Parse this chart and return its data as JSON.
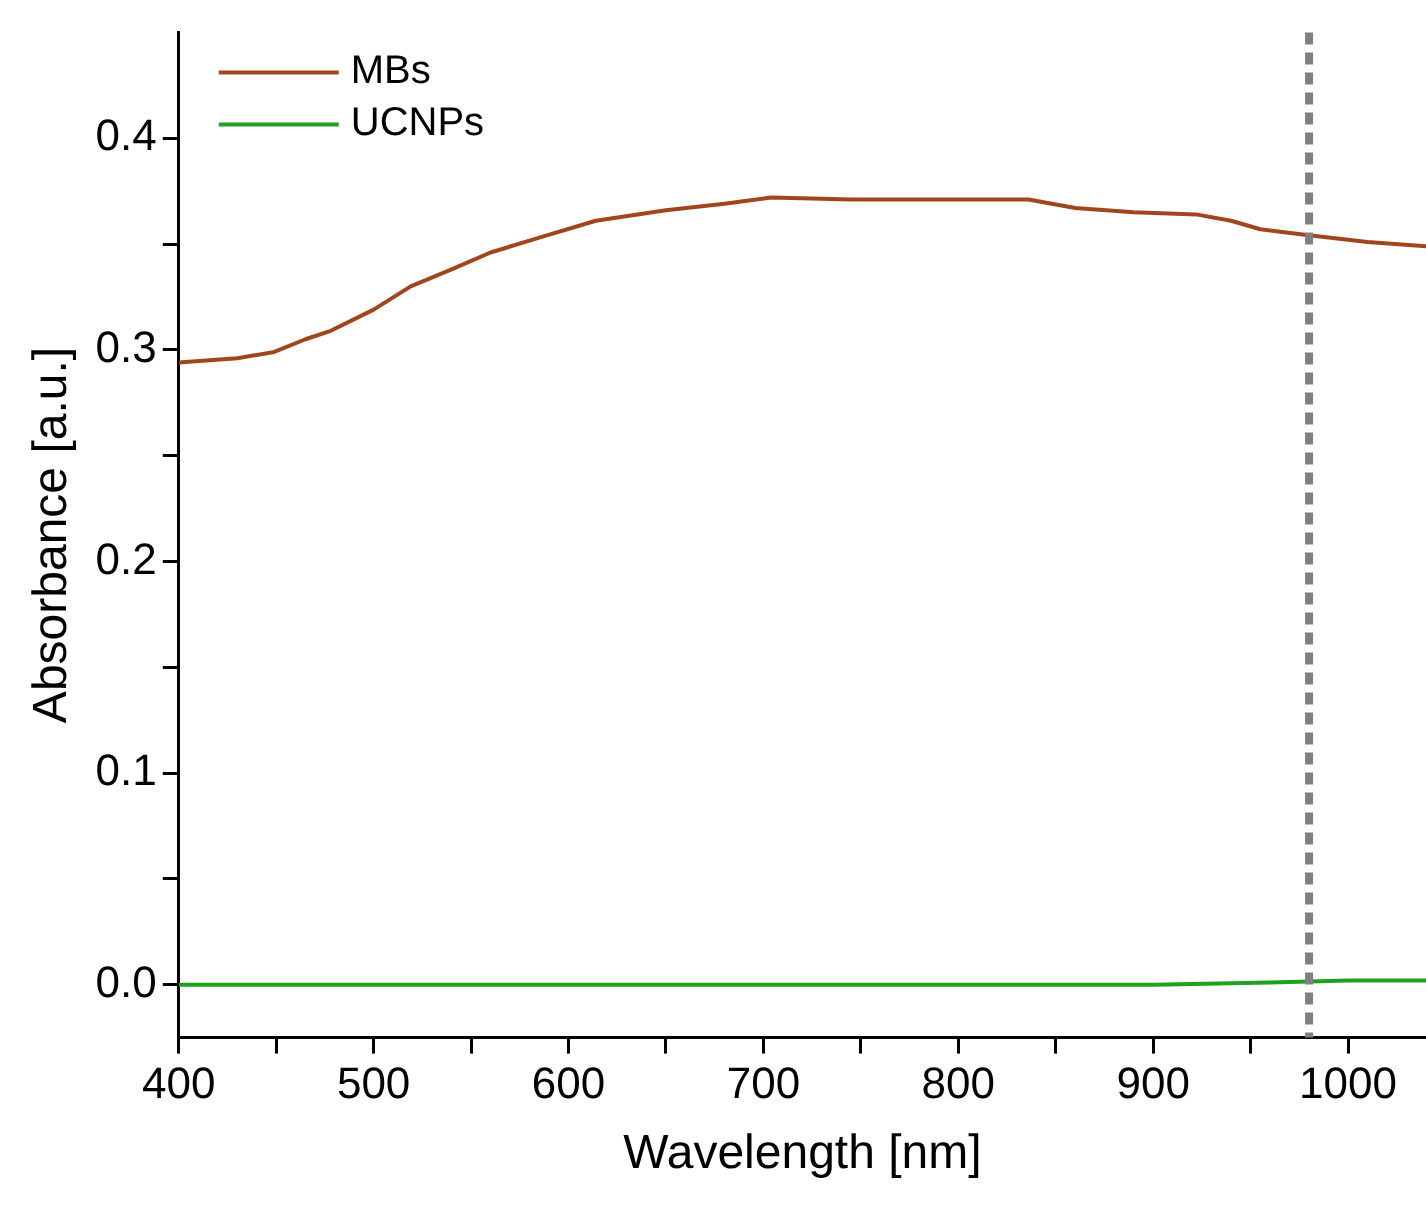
{
  "chart_data": {
    "type": "line",
    "xlabel": "Wavelength [nm]",
    "ylabel": "Absorbance [a.u.]",
    "xlim": [
      400,
      1040
    ],
    "ylim": [
      -0.025,
      0.45
    ],
    "xticks": [
      400,
      {
        "value": 450,
        "label": null
      },
      500,
      {
        "value": 550,
        "label": null
      },
      600,
      {
        "value": 650,
        "label": null
      },
      700,
      {
        "value": 750,
        "label": null
      },
      800,
      {
        "value": 850,
        "label": null
      },
      900,
      {
        "value": 950,
        "label": null
      },
      1000
    ],
    "yticks": [
      {
        "value": 0,
        "label": "0.0"
      },
      {
        "value": 0.05,
        "label": null
      },
      0.1,
      {
        "value": 0.15,
        "label": null
      },
      0.2,
      {
        "value": 0.25,
        "label": null
      },
      0.3,
      {
        "value": 0.35,
        "label": null
      },
      0.4
    ],
    "grid": false,
    "legend": "top left",
    "marker": "none",
    "line_style": "solid",
    "series": [
      {
        "name": "MBs",
        "color": "#a0461e",
        "x": [
          400,
          430,
          449,
          465,
          478,
          500,
          519,
          540,
          560,
          585,
          614,
          650,
          680,
          704,
          745,
          790,
          836,
          860,
          890,
          922,
          940,
          955,
          981,
          1010,
          1040
        ],
        "values": [
          0.294,
          0.296,
          0.299,
          0.305,
          0.309,
          0.319,
          0.33,
          0.338,
          0.346,
          0.353,
          0.361,
          0.366,
          0.369,
          0.372,
          0.371,
          0.371,
          0.371,
          0.367,
          0.365,
          0.364,
          0.361,
          0.357,
          0.354,
          0.351,
          0.349
        ]
      },
      {
        "name": "UCNPs",
        "color": "#1fa01f",
        "x": [
          400,
          500,
          600,
          700,
          800,
          900,
          960,
          1000,
          1040
        ],
        "values": [
          0,
          0,
          0,
          0,
          0,
          0,
          0.001,
          0.002,
          0.002
        ]
      }
    ],
    "ref_lines": [
      {
        "axis": "x",
        "value": 980,
        "color": "#808080",
        "line_style": "dashed"
      }
    ]
  }
}
